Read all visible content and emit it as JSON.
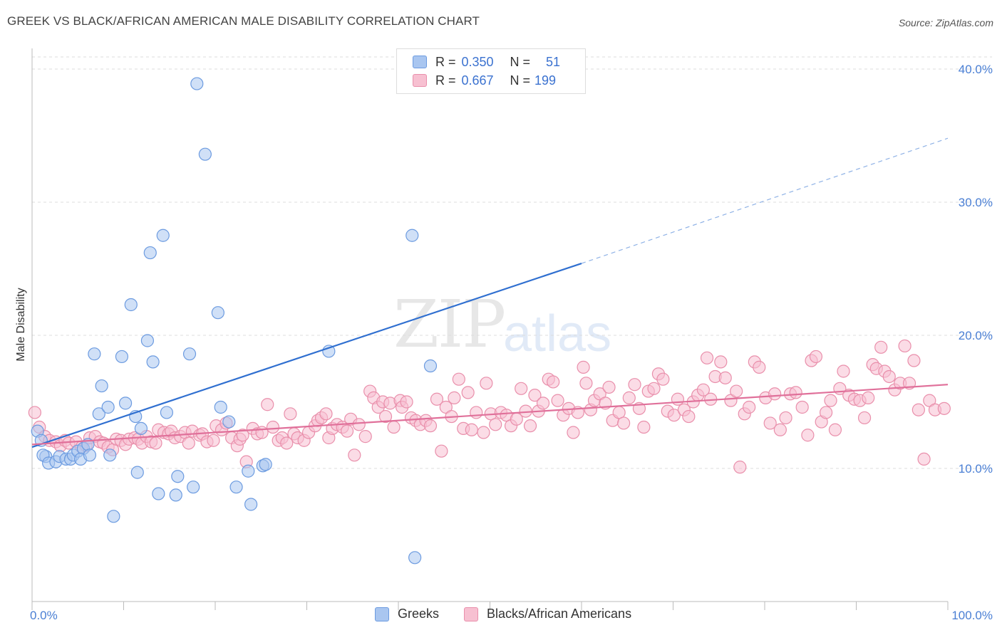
{
  "title": "GREEK VS BLACK/AFRICAN AMERICAN MALE DISABILITY CORRELATION CHART",
  "source": "Source: ZipAtlas.com",
  "watermark": {
    "zip": "ZIP",
    "atlas": "atlas"
  },
  "legend_stats": [
    {
      "r_label": "R =",
      "r_value": "0.350",
      "n_label": "N =",
      "n_value": "51",
      "color": "#a9c6f0",
      "border": "#6c9be0"
    },
    {
      "r_label": "R =",
      "r_value": "0.667",
      "n_label": "N =",
      "n_value": "199",
      "color": "#f7c0d1",
      "border": "#e98fab"
    }
  ],
  "bottom_legend": [
    {
      "label": "Greeks",
      "color": "#a9c6f0",
      "border": "#6c9be0"
    },
    {
      "label": "Blacks/African Americans",
      "color": "#f7c0d1",
      "border": "#e98fab"
    }
  ],
  "chart_data": {
    "type": "scatter",
    "title": "GREEK VS BLACK/AFRICAN AMERICAN MALE DISABILITY CORRELATION CHART",
    "xlabel": "",
    "ylabel": "Male Disability",
    "xlim": [
      0,
      100
    ],
    "ylim": [
      0,
      40
    ],
    "x_tick_labels": [
      "0.0%",
      "100.0%"
    ],
    "y_ticks": [
      10,
      20,
      30,
      40
    ],
    "y_tick_labels": [
      "10.0%",
      "20.0%",
      "30.0%",
      "40.0%"
    ],
    "grid": true,
    "legend_position": "top-center",
    "series": [
      {
        "name": "Greeks",
        "color": "#6c9be0",
        "fill": "#a9c6f0",
        "trend": {
          "x0": 0,
          "y0": 11.6,
          "x1": 60,
          "y1": 25.4,
          "dashed_to_x": 100,
          "dashed_to_y": 34.8,
          "color": "#2f6fd0"
        },
        "points": [
          [
            0.6,
            12.8
          ],
          [
            1.0,
            12.1
          ],
          [
            1.5,
            10.9
          ],
          [
            1.2,
            11.0
          ],
          [
            1.8,
            10.4
          ],
          [
            2.6,
            10.5
          ],
          [
            3.0,
            10.9
          ],
          [
            3.7,
            10.7
          ],
          [
            4.2,
            10.7
          ],
          [
            4.5,
            11.0
          ],
          [
            5.0,
            11.3
          ],
          [
            5.6,
            11.5
          ],
          [
            5.3,
            10.7
          ],
          [
            6.1,
            11.8
          ],
          [
            6.3,
            11.0
          ],
          [
            6.8,
            18.6
          ],
          [
            7.3,
            14.1
          ],
          [
            7.6,
            16.2
          ],
          [
            8.3,
            14.6
          ],
          [
            8.5,
            11.0
          ],
          [
            8.9,
            6.4
          ],
          [
            9.8,
            18.4
          ],
          [
            10.2,
            14.9
          ],
          [
            10.8,
            22.3
          ],
          [
            11.3,
            13.9
          ],
          [
            11.5,
            9.7
          ],
          [
            11.9,
            13.0
          ],
          [
            12.6,
            19.6
          ],
          [
            12.9,
            26.2
          ],
          [
            13.2,
            18.0
          ],
          [
            13.8,
            8.1
          ],
          [
            14.3,
            27.5
          ],
          [
            14.7,
            14.2
          ],
          [
            15.7,
            8.0
          ],
          [
            15.9,
            9.4
          ],
          [
            17.2,
            18.6
          ],
          [
            17.6,
            8.6
          ],
          [
            18.0,
            38.9
          ],
          [
            18.9,
            33.6
          ],
          [
            20.3,
            21.7
          ],
          [
            20.6,
            14.6
          ],
          [
            21.5,
            13.5
          ],
          [
            22.3,
            8.6
          ],
          [
            23.6,
            9.8
          ],
          [
            23.9,
            7.3
          ],
          [
            25.2,
            10.2
          ],
          [
            25.5,
            10.3
          ],
          [
            32.4,
            18.8
          ],
          [
            41.5,
            27.5
          ],
          [
            43.5,
            17.7
          ],
          [
            41.8,
            3.3
          ]
        ]
      },
      {
        "name": "Blacks/African Americans",
        "color": "#e98fab",
        "fill": "#f7c0d1",
        "trend": {
          "x0": 0,
          "y0": 11.8,
          "x1": 100,
          "y1": 16.3,
          "color": "#e0709a"
        },
        "points": [
          [
            0.3,
            14.2
          ],
          [
            0.8,
            13.1
          ],
          [
            1.4,
            12.4
          ],
          [
            1.9,
            12.1
          ],
          [
            2.6,
            12.0
          ],
          [
            3.1,
            11.7
          ],
          [
            3.6,
            12.1
          ],
          [
            4.0,
            11.9
          ],
          [
            4.8,
            12.0
          ],
          [
            5.4,
            11.6
          ],
          [
            5.9,
            11.7
          ],
          [
            6.3,
            12.3
          ],
          [
            6.9,
            12.4
          ],
          [
            7.4,
            12.0
          ],
          [
            7.8,
            11.9
          ],
          [
            8.3,
            11.6
          ],
          [
            8.8,
            11.4
          ],
          [
            9.2,
            12.2
          ],
          [
            9.7,
            12.1
          ],
          [
            10.2,
            11.8
          ],
          [
            10.6,
            12.2
          ],
          [
            11.2,
            12.3
          ],
          [
            11.6,
            12.2
          ],
          [
            12.0,
            11.9
          ],
          [
            12.5,
            12.4
          ],
          [
            13.0,
            12.0
          ],
          [
            13.5,
            11.9
          ],
          [
            13.8,
            12.9
          ],
          [
            14.4,
            12.7
          ],
          [
            14.9,
            12.6
          ],
          [
            15.2,
            12.8
          ],
          [
            15.6,
            12.3
          ],
          [
            16.2,
            12.4
          ],
          [
            16.7,
            12.7
          ],
          [
            17.1,
            11.9
          ],
          [
            17.5,
            12.8
          ],
          [
            18.3,
            12.5
          ],
          [
            18.6,
            12.6
          ],
          [
            19.1,
            12.0
          ],
          [
            19.8,
            12.1
          ],
          [
            20.1,
            13.2
          ],
          [
            20.7,
            12.9
          ],
          [
            21.2,
            13.4
          ],
          [
            21.8,
            12.3
          ],
          [
            22.4,
            11.7
          ],
          [
            22.7,
            12.2
          ],
          [
            23.0,
            12.5
          ],
          [
            23.4,
            10.5
          ],
          [
            24.1,
            13.0
          ],
          [
            24.6,
            12.6
          ],
          [
            25.1,
            12.7
          ],
          [
            25.7,
            14.8
          ],
          [
            26.3,
            13.1
          ],
          [
            26.9,
            12.1
          ],
          [
            27.3,
            12.3
          ],
          [
            27.8,
            11.9
          ],
          [
            28.2,
            14.1
          ],
          [
            28.6,
            12.6
          ],
          [
            29.0,
            12.3
          ],
          [
            29.7,
            12.1
          ],
          [
            30.2,
            12.7
          ],
          [
            30.9,
            13.2
          ],
          [
            31.2,
            13.6
          ],
          [
            31.6,
            13.8
          ],
          [
            32.1,
            14.1
          ],
          [
            32.4,
            12.3
          ],
          [
            32.8,
            13.0
          ],
          [
            33.3,
            13.3
          ],
          [
            33.9,
            13.1
          ],
          [
            34.4,
            12.8
          ],
          [
            34.8,
            13.7
          ],
          [
            35.2,
            11.0
          ],
          [
            35.7,
            13.3
          ],
          [
            36.4,
            12.4
          ],
          [
            36.9,
            15.8
          ],
          [
            37.3,
            15.3
          ],
          [
            37.8,
            14.6
          ],
          [
            38.3,
            15.0
          ],
          [
            38.6,
            13.9
          ],
          [
            39.1,
            14.9
          ],
          [
            39.5,
            13.1
          ],
          [
            40.2,
            15.1
          ],
          [
            40.4,
            14.6
          ],
          [
            40.9,
            15.0
          ],
          [
            41.4,
            13.8
          ],
          [
            41.9,
            13.6
          ],
          [
            42.4,
            13.3
          ],
          [
            43.0,
            13.6
          ],
          [
            43.5,
            13.2
          ],
          [
            44.2,
            15.2
          ],
          [
            44.7,
            11.3
          ],
          [
            45.2,
            14.6
          ],
          [
            45.8,
            13.9
          ],
          [
            46.1,
            15.3
          ],
          [
            46.6,
            16.7
          ],
          [
            47.1,
            13.0
          ],
          [
            47.6,
            15.7
          ],
          [
            48.0,
            12.9
          ],
          [
            48.5,
            14.2
          ],
          [
            49.3,
            12.7
          ],
          [
            49.6,
            16.4
          ],
          [
            50.1,
            14.1
          ],
          [
            50.6,
            13.3
          ],
          [
            51.2,
            14.2
          ],
          [
            51.8,
            14.0
          ],
          [
            52.3,
            13.2
          ],
          [
            52.9,
            13.7
          ],
          [
            53.4,
            16.0
          ],
          [
            53.9,
            14.3
          ],
          [
            54.4,
            13.2
          ],
          [
            54.9,
            15.5
          ],
          [
            55.3,
            14.3
          ],
          [
            55.8,
            14.9
          ],
          [
            56.4,
            16.7
          ],
          [
            56.9,
            16.5
          ],
          [
            57.4,
            15.1
          ],
          [
            58.0,
            14.0
          ],
          [
            58.6,
            14.5
          ],
          [
            59.1,
            12.7
          ],
          [
            59.6,
            14.2
          ],
          [
            60.2,
            17.6
          ],
          [
            60.5,
            16.4
          ],
          [
            61.0,
            14.4
          ],
          [
            61.4,
            15.1
          ],
          [
            62.0,
            15.6
          ],
          [
            62.6,
            14.9
          ],
          [
            63.0,
            16.1
          ],
          [
            63.4,
            13.6
          ],
          [
            64.1,
            14.2
          ],
          [
            64.6,
            13.4
          ],
          [
            65.2,
            15.3
          ],
          [
            65.8,
            16.3
          ],
          [
            66.3,
            14.5
          ],
          [
            66.8,
            13.1
          ],
          [
            67.3,
            15.8
          ],
          [
            67.9,
            16.0
          ],
          [
            68.4,
            17.1
          ],
          [
            68.9,
            16.7
          ],
          [
            69.4,
            14.3
          ],
          [
            70.1,
            14.0
          ],
          [
            70.5,
            15.2
          ],
          [
            71.2,
            14.4
          ],
          [
            71.7,
            13.9
          ],
          [
            72.2,
            15.0
          ],
          [
            72.7,
            15.5
          ],
          [
            73.3,
            15.9
          ],
          [
            73.7,
            18.3
          ],
          [
            74.1,
            15.2
          ],
          [
            74.6,
            16.9
          ],
          [
            75.2,
            18.0
          ],
          [
            75.7,
            16.8
          ],
          [
            76.3,
            15.1
          ],
          [
            76.9,
            15.8
          ],
          [
            77.3,
            10.1
          ],
          [
            77.8,
            14.1
          ],
          [
            78.3,
            14.6
          ],
          [
            78.9,
            18.0
          ],
          [
            79.4,
            17.6
          ],
          [
            80.1,
            15.3
          ],
          [
            80.6,
            13.4
          ],
          [
            81.1,
            15.6
          ],
          [
            81.7,
            12.9
          ],
          [
            82.3,
            13.8
          ],
          [
            82.8,
            15.6
          ],
          [
            83.4,
            15.7
          ],
          [
            84.1,
            14.6
          ],
          [
            84.7,
            12.5
          ],
          [
            85.1,
            18.1
          ],
          [
            85.6,
            18.4
          ],
          [
            86.2,
            13.5
          ],
          [
            86.7,
            14.2
          ],
          [
            87.2,
            15.1
          ],
          [
            87.7,
            12.9
          ],
          [
            88.2,
            16.0
          ],
          [
            88.6,
            17.3
          ],
          [
            89.2,
            15.5
          ],
          [
            89.8,
            15.2
          ],
          [
            90.4,
            15.1
          ],
          [
            90.9,
            13.8
          ],
          [
            91.3,
            15.3
          ],
          [
            91.8,
            17.8
          ],
          [
            92.2,
            17.5
          ],
          [
            92.7,
            19.1
          ],
          [
            93.1,
            17.3
          ],
          [
            93.6,
            16.9
          ],
          [
            94.2,
            15.9
          ],
          [
            94.8,
            16.4
          ],
          [
            95.3,
            19.2
          ],
          [
            95.8,
            16.4
          ],
          [
            96.3,
            18.1
          ],
          [
            96.8,
            14.4
          ],
          [
            97.4,
            10.7
          ],
          [
            98.0,
            15.1
          ],
          [
            98.6,
            14.4
          ],
          [
            99.6,
            14.5
          ]
        ]
      }
    ]
  }
}
